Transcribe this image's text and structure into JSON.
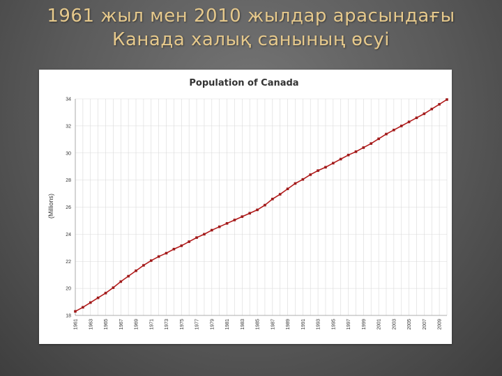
{
  "slide": {
    "title": "1961 жыл мен 2010 жылдар арасындағы Канада халық санының өсуі"
  },
  "colors": {
    "title_text": "#e6c98c",
    "series_line": "#b31b1b",
    "marker": "#9e1a1a",
    "grid": "#d9d9d9",
    "background": "#666666"
  },
  "chart_data": {
    "type": "line",
    "title": "Population of Canada",
    "xlabel": "",
    "ylabel": "(Millions)",
    "xlim": [
      1961,
      2010
    ],
    "ylim": [
      18,
      34
    ],
    "yticks": [
      18,
      20,
      22,
      24,
      26,
      28,
      30,
      32,
      34
    ],
    "xtick_labels": [
      "1961",
      "1963",
      "1965",
      "1967",
      "1969",
      "1971",
      "1973",
      "1975",
      "1977",
      "1979",
      "1981",
      "1983",
      "1985",
      "1987",
      "1989",
      "1991",
      "1993",
      "1995",
      "1997",
      "1999",
      "2001",
      "2003",
      "2005",
      "2007",
      "2009"
    ],
    "grid": true,
    "legend": "none",
    "series": [
      {
        "x": [
          1961,
          1962,
          1963,
          1964,
          1965,
          1966,
          1967,
          1968,
          1969,
          1970,
          1971,
          1972,
          1973,
          1974,
          1975,
          1976,
          1977,
          1978,
          1979,
          1980,
          1981,
          1982,
          1983,
          1984,
          1985,
          1986,
          1987,
          1988,
          1989,
          1990,
          1991,
          1992,
          1993,
          1994,
          1995,
          1996,
          1997,
          1998,
          1999,
          2000,
          2001,
          2002,
          2003,
          2004,
          2005,
          2006,
          2007,
          2008,
          2009,
          2010
        ],
        "values": [
          18.3,
          18.6,
          18.95,
          19.3,
          19.65,
          20.05,
          20.5,
          20.9,
          21.3,
          21.7,
          22.05,
          22.35,
          22.6,
          22.9,
          23.15,
          23.45,
          23.75,
          24.0,
          24.3,
          24.55,
          24.8,
          25.05,
          25.3,
          25.55,
          25.8,
          26.15,
          26.6,
          26.95,
          27.35,
          27.75,
          28.05,
          28.4,
          28.7,
          28.95,
          29.25,
          29.55,
          29.85,
          30.1,
          30.4,
          30.7,
          31.05,
          31.4,
          31.7,
          32.0,
          32.3,
          32.6,
          32.9,
          33.25,
          33.6,
          33.95
        ]
      }
    ]
  }
}
